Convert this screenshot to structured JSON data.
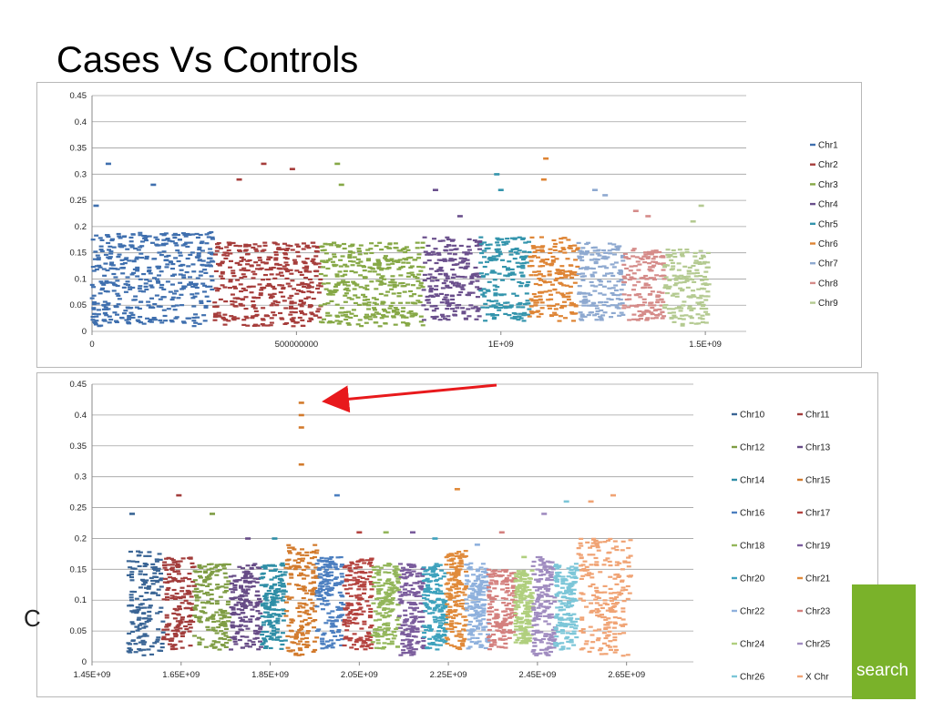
{
  "slide": {
    "title": "Cases Vs Controls",
    "side_fragment": "C",
    "brand_text": "search",
    "brand_color": "#7ab22a"
  },
  "annotation": {
    "arrow_color": "#e8191c",
    "points_to": "Chr15 peak at 0.42"
  },
  "chart_data": [
    {
      "type": "scatter",
      "title": "",
      "xlim": [
        0,
        1600000000
      ],
      "ylim": [
        0,
        0.45
      ],
      "x_ticks": [
        {
          "value": 0,
          "label": "0"
        },
        {
          "value": 500000000,
          "label": "500000000"
        },
        {
          "value": 1000000000,
          "label": "1E+09"
        },
        {
          "value": 1500000000,
          "label": "1.5E+09"
        }
      ],
      "y_ticks": [
        {
          "value": 0,
          "label": "0"
        },
        {
          "value": 0.05,
          "label": "0.05"
        },
        {
          "value": 0.1,
          "label": "0.1"
        },
        {
          "value": 0.15,
          "label": "0.15"
        },
        {
          "value": 0.2,
          "label": "0.2"
        },
        {
          "value": 0.25,
          "label": "0.25"
        },
        {
          "value": 0.3,
          "label": "0.3"
        },
        {
          "value": 0.35,
          "label": "0.35"
        },
        {
          "value": 0.4,
          "label": "0.4"
        },
        {
          "value": 0.45,
          "label": "0.45"
        }
      ],
      "grid": true,
      "legend_position": "right",
      "series": [
        {
          "name": "Chr1",
          "color": "#3f6fae",
          "x_range": [
            0,
            300000000
          ],
          "y_range": [
            0.01,
            0.19
          ],
          "peaks": [
            [
              40000000,
              0.32
            ],
            [
              150000000,
              0.28
            ],
            [
              10000000,
              0.24
            ]
          ]
        },
        {
          "name": "Chr2",
          "color": "#a63d3b",
          "x_range": [
            300000000,
            560000000
          ],
          "y_range": [
            0.01,
            0.17
          ],
          "peaks": [
            [
              420000000,
              0.32
            ],
            [
              490000000,
              0.31
            ],
            [
              360000000,
              0.29
            ]
          ]
        },
        {
          "name": "Chr3",
          "color": "#86a846",
          "x_range": [
            560000000,
            810000000
          ],
          "y_range": [
            0.01,
            0.17
          ],
          "peaks": [
            [
              600000000,
              0.32
            ],
            [
              610000000,
              0.28
            ]
          ]
        },
        {
          "name": "Chr4",
          "color": "#6a4f8c",
          "x_range": [
            810000000,
            950000000
          ],
          "y_range": [
            0.02,
            0.18
          ],
          "peaks": [
            [
              840000000,
              0.27
            ],
            [
              900000000,
              0.22
            ]
          ]
        },
        {
          "name": "Chr5",
          "color": "#3394ac",
          "x_range": [
            950000000,
            1070000000
          ],
          "y_range": [
            0.02,
            0.18
          ],
          "peaks": [
            [
              990000000,
              0.3
            ],
            [
              1000000000,
              0.27
            ]
          ]
        },
        {
          "name": "Chr6",
          "color": "#de8434",
          "x_range": [
            1070000000,
            1190000000
          ],
          "y_range": [
            0.02,
            0.18
          ],
          "peaks": [
            [
              1110000000,
              0.33
            ],
            [
              1105000000,
              0.29
            ]
          ]
        },
        {
          "name": "Chr7",
          "color": "#8ea9d0",
          "x_range": [
            1190000000,
            1300000000
          ],
          "y_range": [
            0.02,
            0.17
          ],
          "peaks": [
            [
              1230000000,
              0.27
            ],
            [
              1255000000,
              0.26
            ]
          ]
        },
        {
          "name": "Chr8",
          "color": "#d58b89",
          "x_range": [
            1300000000,
            1400000000
          ],
          "y_range": [
            0.02,
            0.16
          ],
          "peaks": [
            [
              1330000000,
              0.23
            ],
            [
              1360000000,
              0.22
            ]
          ]
        },
        {
          "name": "Chr9",
          "color": "#b4ca91",
          "x_range": [
            1400000000,
            1510000000
          ],
          "y_range": [
            0.01,
            0.16
          ],
          "peaks": [
            [
              1490000000,
              0.24
            ],
            [
              1470000000,
              0.21
            ]
          ]
        }
      ]
    },
    {
      "type": "scatter",
      "title": "",
      "xlim": [
        1450000000,
        2800000000
      ],
      "ylim": [
        0,
        0.45
      ],
      "x_ticks": [
        {
          "value": 1450000000,
          "label": "1.45E+09"
        },
        {
          "value": 1650000000,
          "label": "1.65E+09"
        },
        {
          "value": 1850000000,
          "label": "1.85E+09"
        },
        {
          "value": 2050000000,
          "label": "2.05E+09"
        },
        {
          "value": 2250000000,
          "label": "2.25E+09"
        },
        {
          "value": 2450000000,
          "label": "2.45E+09"
        },
        {
          "value": 2650000000,
          "label": "2.65E+09"
        }
      ],
      "y_ticks": [
        {
          "value": 0,
          "label": "0"
        },
        {
          "value": 0.05,
          "label": "0.05"
        },
        {
          "value": 0.1,
          "label": "0.1"
        },
        {
          "value": 0.15,
          "label": "0.15"
        },
        {
          "value": 0.2,
          "label": "0.2"
        },
        {
          "value": 0.25,
          "label": "0.25"
        },
        {
          "value": 0.3,
          "label": "0.3"
        },
        {
          "value": 0.35,
          "label": "0.35"
        },
        {
          "value": 0.4,
          "label": "0.4"
        },
        {
          "value": 0.45,
          "label": "0.45"
        }
      ],
      "grid": true,
      "legend_position": "right",
      "series": [
        {
          "name": "Chr10",
          "color": "#3a6595",
          "x_range": [
            1530000000,
            1610000000
          ],
          "y_range": [
            0.01,
            0.18
          ],
          "peaks": [
            [
              1540000000,
              0.24
            ]
          ]
        },
        {
          "name": "Chr11",
          "color": "#a23c3b",
          "x_range": [
            1610000000,
            1680000000
          ],
          "y_range": [
            0.02,
            0.17
          ],
          "peaks": [
            [
              1645000000,
              0.27
            ]
          ]
        },
        {
          "name": "Chr12",
          "color": "#7f9d44",
          "x_range": [
            1680000000,
            1760000000
          ],
          "y_range": [
            0.02,
            0.16
          ],
          "peaks": [
            [
              1720000000,
              0.24
            ]
          ]
        },
        {
          "name": "Chr13",
          "color": "#664b86",
          "x_range": [
            1760000000,
            1830000000
          ],
          "y_range": [
            0.02,
            0.16
          ],
          "peaks": [
            [
              1800000000,
              0.2
            ]
          ]
        },
        {
          "name": "Chr14",
          "color": "#2f8ea6",
          "x_range": [
            1830000000,
            1885000000
          ],
          "y_range": [
            0.02,
            0.16
          ],
          "peaks": [
            [
              1860000000,
              0.2
            ]
          ]
        },
        {
          "name": "Chr15",
          "color": "#d27a2c",
          "x_range": [
            1885000000,
            1955000000
          ],
          "y_range": [
            0.01,
            0.19
          ],
          "peaks": [
            [
              1920000000,
              0.42
            ],
            [
              1920000000,
              0.4
            ],
            [
              1920000000,
              0.38
            ],
            [
              1920000000,
              0.32
            ]
          ]
        },
        {
          "name": "Chr16",
          "color": "#4c7fc0",
          "x_range": [
            1955000000,
            2015000000
          ],
          "y_range": [
            0.02,
            0.17
          ],
          "peaks": [
            [
              2000000000,
              0.27
            ]
          ]
        },
        {
          "name": "Chr17",
          "color": "#b4433f",
          "x_range": [
            2015000000,
            2080000000
          ],
          "y_range": [
            0.02,
            0.17
          ],
          "peaks": [
            [
              2050000000,
              0.21
            ]
          ]
        },
        {
          "name": "Chr18",
          "color": "#93b65a",
          "x_range": [
            2080000000,
            2140000000
          ],
          "y_range": [
            0.02,
            0.16
          ],
          "peaks": [
            [
              2110000000,
              0.21
            ]
          ]
        },
        {
          "name": "Chr19",
          "color": "#7a5c9c",
          "x_range": [
            2140000000,
            2195000000
          ],
          "y_range": [
            0.01,
            0.16
          ],
          "peaks": [
            [
              2170000000,
              0.21
            ]
          ]
        },
        {
          "name": "Chr20",
          "color": "#3ea2bd",
          "x_range": [
            2195000000,
            2245000000
          ],
          "y_range": [
            0.02,
            0.16
          ],
          "peaks": [
            [
              2220000000,
              0.2
            ]
          ]
        },
        {
          "name": "Chr21",
          "color": "#e08a3a",
          "x_range": [
            2245000000,
            2290000000
          ],
          "y_range": [
            0.02,
            0.18
          ],
          "peaks": [
            [
              2270000000,
              0.28
            ]
          ]
        },
        {
          "name": "Chr22",
          "color": "#8fb1dd",
          "x_range": [
            2290000000,
            2340000000
          ],
          "y_range": [
            0.02,
            0.16
          ],
          "peaks": [
            [
              2315000000,
              0.19
            ]
          ]
        },
        {
          "name": "Chr23",
          "color": "#d4807e",
          "x_range": [
            2340000000,
            2400000000
          ],
          "y_range": [
            0.02,
            0.15
          ],
          "peaks": [
            [
              2370000000,
              0.21
            ]
          ]
        },
        {
          "name": "Chr24",
          "color": "#b0cf7e",
          "x_range": [
            2400000000,
            2440000000
          ],
          "y_range": [
            0.03,
            0.15
          ],
          "peaks": [
            [
              2420000000,
              0.17
            ]
          ]
        },
        {
          "name": "Chr25",
          "color": "#a08cc0",
          "x_range": [
            2440000000,
            2490000000
          ],
          "y_range": [
            0.01,
            0.17
          ],
          "peaks": [
            [
              2465000000,
              0.24
            ]
          ]
        },
        {
          "name": "Chr26",
          "color": "#7cc6d8",
          "x_range": [
            2490000000,
            2540000000
          ],
          "y_range": [
            0.02,
            0.16
          ],
          "peaks": [
            [
              2515000000,
              0.26
            ]
          ]
        },
        {
          "name": "X Chr",
          "color": "#f0a374",
          "x_range": [
            2540000000,
            2660000000
          ],
          "y_range": [
            0.01,
            0.2
          ],
          "peaks": [
            [
              2620000000,
              0.27
            ],
            [
              2570000000,
              0.26
            ]
          ]
        }
      ]
    }
  ]
}
